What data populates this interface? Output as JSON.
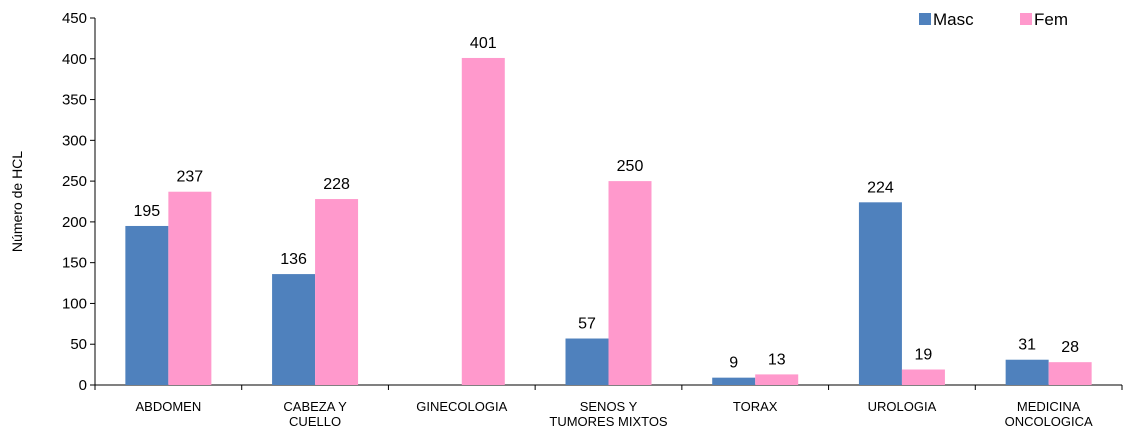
{
  "chart_data": {
    "type": "bar",
    "title": "",
    "xlabel": "",
    "ylabel": "Número de HCL",
    "ylim": [
      0,
      450
    ],
    "yticks": [
      0,
      50,
      100,
      150,
      200,
      250,
      300,
      350,
      400,
      450
    ],
    "grid": false,
    "legend_position": "top-right",
    "categories": [
      [
        "ABDOMEN"
      ],
      [
        "CABEZA Y",
        "CUELLO"
      ],
      [
        "GINECOLOGIA"
      ],
      [
        "SENOS Y",
        "TUMORES MIXTOS"
      ],
      [
        "TORAX"
      ],
      [
        "UROLOGIA"
      ],
      [
        "MEDICINA",
        "ONCOLOGICA"
      ]
    ],
    "series": [
      {
        "name": "Masc",
        "color": "#4f81bd",
        "values": [
          195,
          136,
          null,
          57,
          9,
          224,
          31
        ]
      },
      {
        "name": "Fem",
        "color": "#ff99cc",
        "values": [
          237,
          228,
          401,
          250,
          13,
          19,
          28
        ]
      }
    ]
  }
}
